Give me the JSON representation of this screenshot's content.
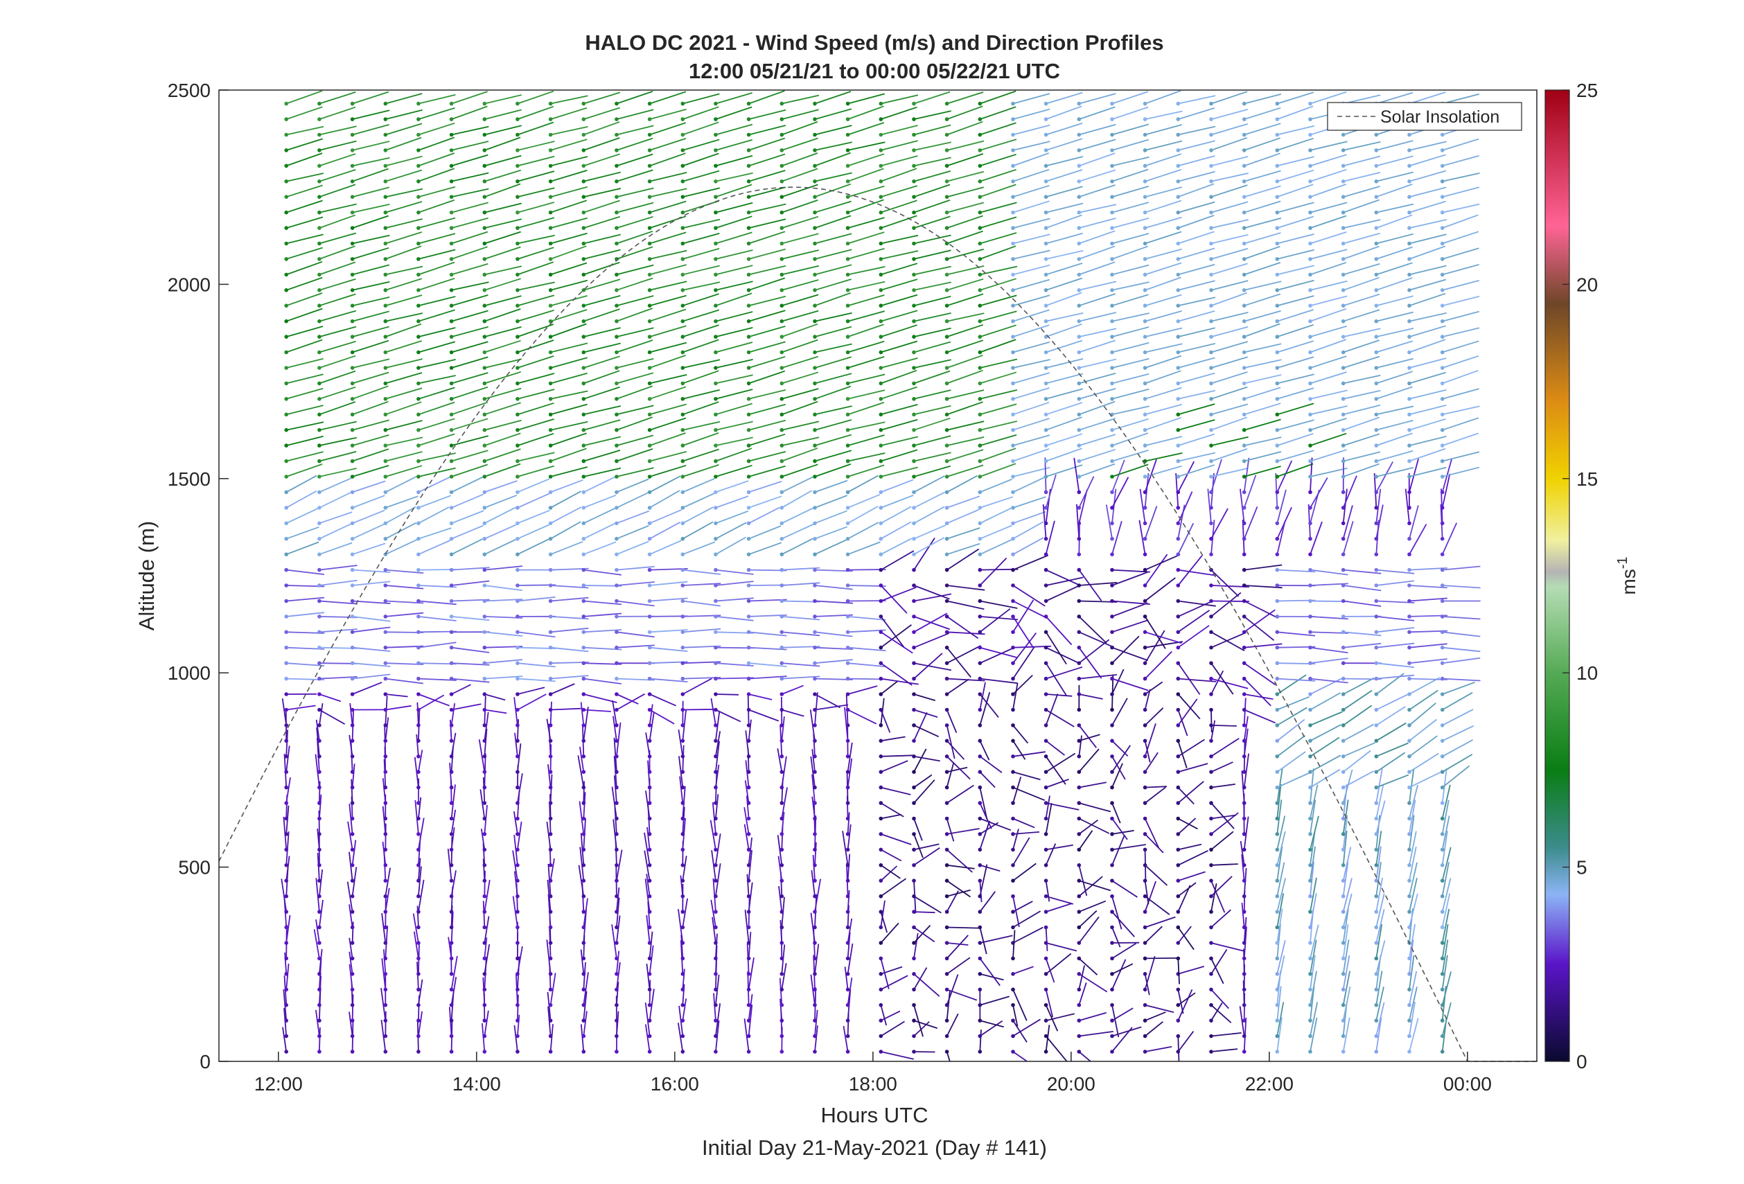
{
  "chart_data": {
    "type": "quiver",
    "title": "HALO DC 2021 - Wind Speed (m/s) and Direction Profiles",
    "subtitle": "12:00 05/21/21 to 00:00 05/22/21  UTC",
    "xlabel": "Hours UTC",
    "xlabel2": "Initial Day 21-May-2021 (Day # 141)",
    "ylabel": "Altitude (m)",
    "xlim": [
      11.4,
      24.7
    ],
    "ylim": [
      0,
      2500
    ],
    "xticks": [
      {
        "v": 12,
        "label": "12:00"
      },
      {
        "v": 14,
        "label": "14:00"
      },
      {
        "v": 16,
        "label": "16:00"
      },
      {
        "v": 18,
        "label": "18:00"
      },
      {
        "v": 20,
        "label": "20:00"
      },
      {
        "v": 22,
        "label": "22:00"
      },
      {
        "v": 24,
        "label": "00:00"
      }
    ],
    "yticks": [
      {
        "v": 0,
        "label": "0"
      },
      {
        "v": 500,
        "label": "500"
      },
      {
        "v": 1000,
        "label": "1000"
      },
      {
        "v": 1500,
        "label": "1500"
      },
      {
        "v": 2000,
        "label": "2000"
      },
      {
        "v": 2500,
        "label": "2500"
      }
    ],
    "colorbar": {
      "label": "ms-1",
      "label_main": "ms",
      "label_sup": "-1",
      "range": [
        0,
        25
      ],
      "ticks": [
        {
          "v": 0,
          "label": "0"
        },
        {
          "v": 5,
          "label": "5"
        },
        {
          "v": 10,
          "label": "10"
        },
        {
          "v": 15,
          "label": "15"
        },
        {
          "v": 20,
          "label": "20"
        },
        {
          "v": 25,
          "label": "25"
        }
      ],
      "stops": [
        {
          "v": 0,
          "color": "#0a0a2e"
        },
        {
          "v": 2.5,
          "color": "#5a14c8"
        },
        {
          "v": 4.3,
          "color": "#8cb4f5"
        },
        {
          "v": 5.5,
          "color": "#3c8c8c"
        },
        {
          "v": 7.5,
          "color": "#0a7d14"
        },
        {
          "v": 10,
          "color": "#55aa55"
        },
        {
          "v": 12.2,
          "color": "#b4dcb4"
        },
        {
          "v": 12.6,
          "color": "#b4b4b4"
        },
        {
          "v": 13.4,
          "color": "#f0f0a0"
        },
        {
          "v": 15,
          "color": "#f0d200"
        },
        {
          "v": 17,
          "color": "#dc8c14"
        },
        {
          "v": 19.5,
          "color": "#6e4628"
        },
        {
          "v": 21.5,
          "color": "#ff6496"
        },
        {
          "v": 25,
          "color": "#a00014"
        }
      ]
    },
    "legend": {
      "label": "Solar Insolation",
      "position": "top-right"
    },
    "solar_insolation_peak_altitude": 2250,
    "solar_insolation_peak_time": 17.2,
    "wind_regimes": [
      {
        "layer": "below ~950 m, 12:00-18:00",
        "speed_ms": 2,
        "direction": "mostly vertical-pointing barbs (southerly/ northerly light winds)"
      },
      {
        "layer": "1000-1250 m",
        "speed_ms": 3.5,
        "direction": "easterly/westerly"
      },
      {
        "layer": "1300-1450 m",
        "speed_ms": 4.5,
        "direction": "southwesterly"
      },
      {
        "layer": "1500-2500 m, 12:00-19:30",
        "speed_ms": 8,
        "direction": "southwesterly"
      },
      {
        "layer": "1500-2500 m, 19:30-00:00",
        "speed_ms": 4.5,
        "direction": "southwesterly"
      },
      {
        "layer": "below 900 m, 22:00-00:00",
        "speed_ms": 5,
        "direction": "southerly"
      }
    ]
  }
}
